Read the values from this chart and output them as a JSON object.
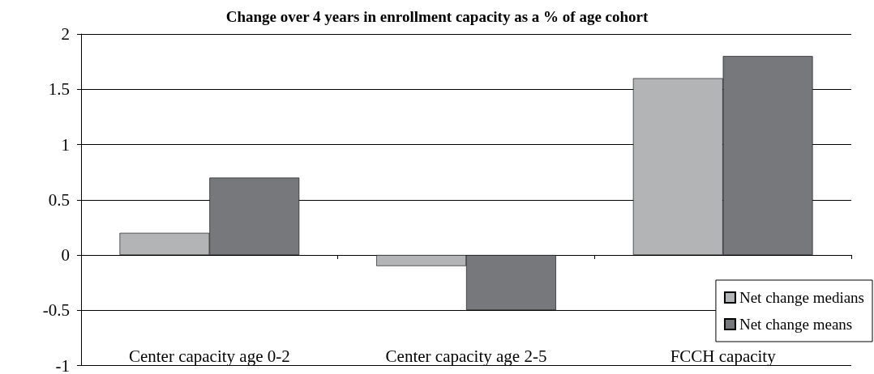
{
  "chart_data": {
    "type": "bar",
    "title": "Change over 4 years in enrollment capacity as a % of age cohort",
    "categories": [
      "Center capacity age 0-2",
      "Center capacity age 2-5",
      "FCCH capacity"
    ],
    "series": [
      {
        "name": "Net change medians",
        "color": "#b2b4b6",
        "values": [
          0.2,
          -0.1,
          1.6
        ]
      },
      {
        "name": "Net change means",
        "color": "#77787b",
        "values": [
          0.7,
          -0.5,
          1.8
        ]
      }
    ],
    "ylim": [
      -1,
      2
    ],
    "yticks": [
      -1,
      -0.5,
      0,
      0.5,
      1,
      1.5,
      2
    ],
    "grid": "y",
    "legend": "bottom right"
  }
}
